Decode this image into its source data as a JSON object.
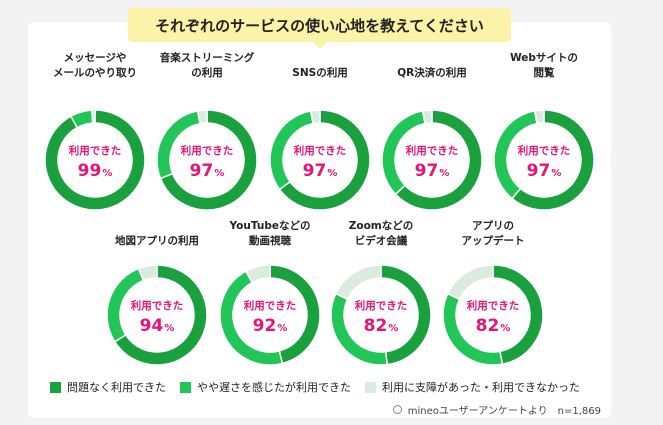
{
  "chart_data": {
    "type": "pie",
    "title": "それぞれのサービスの使い心地を教えてください",
    "center_label": "利用できた",
    "unit": "%",
    "legend": [
      {
        "name": "問題なく利用できた",
        "color": "#1aa03c"
      },
      {
        "name": "やや遅さを感じたが利用できた",
        "color": "#22c558"
      },
      {
        "name": "利用に支障があった・利用できなかった",
        "color": "#dcebdf"
      }
    ],
    "charts": [
      {
        "label_lines": [
          "メッセージや",
          "メールのやり取り"
        ],
        "usable": 99,
        "smooth": 92,
        "slow": 7,
        "problem": 1
      },
      {
        "label_lines": [
          "音楽ストリーミング",
          "の利用"
        ],
        "usable": 97,
        "smooth": 69,
        "slow": 28,
        "problem": 3
      },
      {
        "label_lines": [
          "SNSの利用"
        ],
        "usable": 97,
        "smooth": 65,
        "slow": 32,
        "problem": 3
      },
      {
        "label_lines": [
          "QR決済の利用"
        ],
        "usable": 97,
        "smooth": 63,
        "slow": 34,
        "problem": 3
      },
      {
        "label_lines": [
          "Webサイトの",
          "閲覧"
        ],
        "usable": 97,
        "smooth": 61,
        "slow": 36,
        "problem": 3
      },
      {
        "label_lines": [
          "地図アプリの利用"
        ],
        "usable": 94,
        "smooth": 66,
        "slow": 28,
        "problem": 6
      },
      {
        "label_lines": [
          "YouTubeなどの",
          "動画視聴"
        ],
        "usable": 92,
        "smooth": 46,
        "slow": 46,
        "problem": 8
      },
      {
        "label_lines": [
          "Zoomなどの",
          "ビデオ会議"
        ],
        "usable": 82,
        "smooth": 48,
        "slow": 34,
        "problem": 18
      },
      {
        "label_lines": [
          "アプリの",
          "アップデート"
        ],
        "usable": 82,
        "smooth": 47,
        "slow": 35,
        "problem": 18
      }
    ]
  },
  "source_note": "mineoユーザーアンケートより　n=1,869"
}
